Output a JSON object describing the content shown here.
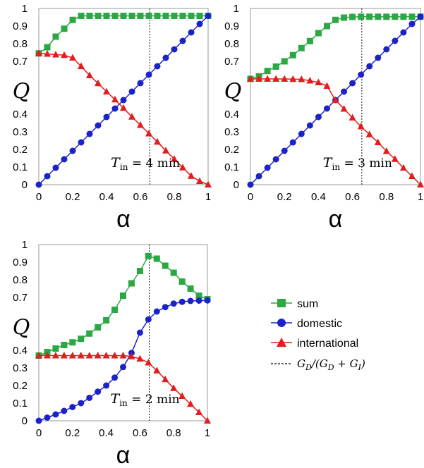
{
  "chart_data": [
    {
      "type": "line",
      "xlabel": "α",
      "ylabel": "Q",
      "xlim": [
        0,
        1
      ],
      "ylim": [
        0,
        1
      ],
      "xticks": [
        "0",
        "0.2",
        "0.4",
        "0.6",
        "0.8",
        "1"
      ],
      "yticks": [
        "0",
        "0.1",
        "0.2",
        "0.3",
        "0.4",
        "0.7",
        "0.8",
        "0.9",
        "1"
      ],
      "annotation": {
        "var": "T",
        "sub": "in",
        "rest": " = 4 min"
      },
      "vline_x": 0.655,
      "x": [
        0,
        0.05,
        0.1,
        0.15,
        0.2,
        0.25,
        0.3,
        0.35,
        0.4,
        0.45,
        0.5,
        0.55,
        0.6,
        0.65,
        0.7,
        0.75,
        0.8,
        0.85,
        0.9,
        0.95,
        1
      ],
      "series": [
        {
          "name": "sum",
          "color": "#2aa843",
          "marker": "square",
          "values": [
            0.745,
            0.78,
            0.84,
            0.885,
            0.935,
            0.958,
            0.958,
            0.958,
            0.958,
            0.958,
            0.958,
            0.958,
            0.958,
            0.958,
            0.958,
            0.958,
            0.958,
            0.958,
            0.958,
            0.958,
            0.958
          ]
        },
        {
          "name": "domestic",
          "color": "#1a22c8",
          "marker": "circle",
          "values": [
            0,
            0.048,
            0.096,
            0.144,
            0.192,
            0.24,
            0.288,
            0.336,
            0.384,
            0.432,
            0.48,
            0.528,
            0.576,
            0.624,
            0.672,
            0.72,
            0.768,
            0.816,
            0.864,
            0.912,
            0.958
          ]
        },
        {
          "name": "international",
          "color": "#e11d1d",
          "marker": "triangle",
          "values": [
            0.745,
            0.742,
            0.738,
            0.735,
            0.72,
            0.672,
            0.62,
            0.575,
            0.528,
            0.483,
            0.435,
            0.385,
            0.338,
            0.29,
            0.243,
            0.193,
            0.145,
            0.097,
            0.049,
            0.02,
            0.0
          ]
        }
      ]
    },
    {
      "type": "line",
      "xlabel": "α",
      "ylabel": "Q",
      "xlim": [
        0,
        1
      ],
      "ylim": [
        0,
        1
      ],
      "xticks": [
        "0",
        "0.2",
        "0.4",
        "0.6",
        "0.8",
        "1"
      ],
      "yticks": [
        "0",
        "0.1",
        "0.2",
        "0.3",
        "0.4",
        "0.7",
        "0.8",
        "0.9",
        "1"
      ],
      "annotation": {
        "var": "T",
        "sub": "in",
        "rest": " = 3 min"
      },
      "vline_x": 0.655,
      "x": [
        0,
        0.05,
        0.1,
        0.15,
        0.2,
        0.25,
        0.3,
        0.35,
        0.4,
        0.45,
        0.5,
        0.55,
        0.6,
        0.65,
        0.7,
        0.75,
        0.8,
        0.85,
        0.9,
        0.95,
        1
      ],
      "series": [
        {
          "name": "sum",
          "color": "#2aa843",
          "marker": "square",
          "values": [
            0.6,
            0.615,
            0.645,
            0.67,
            0.7,
            0.735,
            0.775,
            0.815,
            0.86,
            0.9,
            0.935,
            0.948,
            0.952,
            0.953,
            0.953,
            0.953,
            0.953,
            0.953,
            0.953,
            0.953,
            0.953
          ]
        },
        {
          "name": "domestic",
          "color": "#1a22c8",
          "marker": "circle",
          "values": [
            0,
            0.048,
            0.096,
            0.144,
            0.192,
            0.24,
            0.288,
            0.336,
            0.384,
            0.432,
            0.48,
            0.528,
            0.576,
            0.624,
            0.672,
            0.72,
            0.768,
            0.816,
            0.864,
            0.912,
            0.953
          ]
        },
        {
          "name": "international",
          "color": "#e11d1d",
          "marker": "triangle",
          "values": [
            0.6,
            0.6,
            0.6,
            0.6,
            0.6,
            0.599,
            0.598,
            0.59,
            0.58,
            0.56,
            0.48,
            0.43,
            0.38,
            0.33,
            0.285,
            0.24,
            0.19,
            0.145,
            0.095,
            0.048,
            0.0
          ]
        }
      ]
    },
    {
      "type": "line",
      "xlabel": "α",
      "ylabel": "Q",
      "xlim": [
        0,
        1
      ],
      "ylim": [
        0,
        1
      ],
      "xticks": [
        "0",
        "0.2",
        "0.4",
        "0.6",
        "0.8",
        "1"
      ],
      "yticks": [
        "0",
        "0.1",
        "0.2",
        "0.3",
        "0.4",
        "0.7",
        "0.8",
        "0.9",
        "1"
      ],
      "annotation": {
        "var": "T",
        "sub": "in",
        "rest": " = 2 min"
      },
      "vline_x": 0.655,
      "x": [
        0,
        0.05,
        0.1,
        0.15,
        0.2,
        0.25,
        0.3,
        0.35,
        0.4,
        0.45,
        0.5,
        0.55,
        0.6,
        0.65,
        0.7,
        0.75,
        0.8,
        0.85,
        0.9,
        0.95,
        1
      ],
      "series": [
        {
          "name": "sum",
          "color": "#2aa843",
          "marker": "square",
          "values": [
            0.37,
            0.39,
            0.41,
            0.43,
            0.445,
            0.465,
            0.495,
            0.53,
            0.57,
            0.63,
            0.71,
            0.78,
            0.85,
            0.935,
            0.92,
            0.88,
            0.84,
            0.79,
            0.75,
            0.71,
            0.69
          ]
        },
        {
          "name": "domestic",
          "color": "#1a22c8",
          "marker": "circle",
          "values": [
            0,
            0.018,
            0.036,
            0.056,
            0.078,
            0.1,
            0.13,
            0.165,
            0.2,
            0.245,
            0.305,
            0.385,
            0.5,
            0.575,
            0.62,
            0.645,
            0.665,
            0.675,
            0.68,
            0.682,
            0.683
          ]
        },
        {
          "name": "international",
          "color": "#e11d1d",
          "marker": "triangle",
          "values": [
            0.37,
            0.37,
            0.37,
            0.37,
            0.37,
            0.37,
            0.37,
            0.37,
            0.37,
            0.37,
            0.37,
            0.365,
            0.352,
            0.33,
            0.285,
            0.235,
            0.185,
            0.14,
            0.095,
            0.048,
            0.0
          ]
        }
      ]
    }
  ],
  "legend": {
    "items": [
      {
        "label": "sum",
        "color": "#2aa843",
        "marker": "square"
      },
      {
        "label": "domestic",
        "color": "#1a22c8",
        "marker": "circle"
      },
      {
        "label": "international",
        "color": "#e11d1d",
        "marker": "triangle"
      }
    ],
    "vline_label": "G_D/(G_D + G_I)"
  }
}
